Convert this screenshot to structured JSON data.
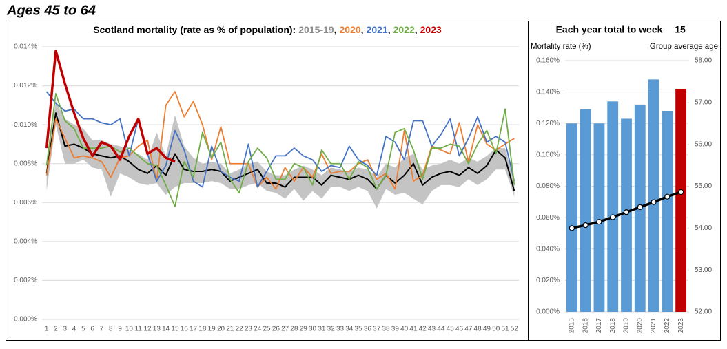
{
  "page_title": "Ages 45 to 64",
  "chart_data": [
    {
      "type": "line",
      "title": "Scotland mortality (rate as % of population):",
      "legend_separator": ",",
      "categories": [
        1,
        2,
        3,
        4,
        5,
        6,
        7,
        8,
        9,
        10,
        11,
        12,
        13,
        14,
        15,
        16,
        17,
        18,
        19,
        20,
        21,
        22,
        23,
        24,
        25,
        26,
        27,
        28,
        29,
        30,
        31,
        32,
        33,
        34,
        35,
        36,
        37,
        38,
        39,
        40,
        41,
        42,
        43,
        44,
        45,
        46,
        47,
        48,
        49,
        50,
        51,
        52
      ],
      "ylim": [
        0,
        0.014
      ],
      "yticks": [
        {
          "value": 0,
          "label": "0.000%"
        },
        {
          "value": 0.002,
          "label": "0.002%"
        },
        {
          "value": 0.004,
          "label": "0.004%"
        },
        {
          "value": 0.006,
          "label": "0.006%"
        },
        {
          "value": 0.008,
          "label": "0.008%"
        },
        {
          "value": 0.01,
          "label": "0.010%"
        },
        {
          "value": 0.012,
          "label": "0.012%"
        },
        {
          "value": 0.014,
          "label": "0.014%"
        }
      ],
      "grid": true,
      "series": [
        {
          "name": "2015-19",
          "color": "#8c8c8c",
          "line_color": "#000000",
          "band_color": "#c4c4c4",
          "values": [
            0.0075,
            0.0106,
            0.0089,
            0.009,
            0.0088,
            0.0085,
            0.0084,
            0.0083,
            0.0084,
            0.0081,
            0.0077,
            0.0075,
            0.0079,
            0.0074,
            0.0085,
            0.0077,
            0.0076,
            0.0076,
            0.0077,
            0.0076,
            0.0071,
            0.0073,
            0.0075,
            0.0077,
            0.007,
            0.007,
            0.0068,
            0.0073,
            0.0073,
            0.0073,
            0.0069,
            0.0074,
            0.0073,
            0.0072,
            0.0074,
            0.0072,
            0.0067,
            0.0074,
            0.007,
            0.0074,
            0.008,
            0.0069,
            0.0073,
            0.0075,
            0.0076,
            0.0074,
            0.0078,
            0.0075,
            0.0079,
            0.0087,
            0.0083,
            0.0066
          ],
          "high": [
            0.0078,
            0.0112,
            0.0103,
            0.01,
            0.0098,
            0.0092,
            0.0092,
            0.009,
            0.0089,
            0.0087,
            0.0085,
            0.0082,
            0.0096,
            0.0084,
            0.0105,
            0.0089,
            0.0083,
            0.008,
            0.0081,
            0.008,
            0.0075,
            0.0077,
            0.008,
            0.0081,
            0.0076,
            0.0074,
            0.0074,
            0.0077,
            0.0079,
            0.0077,
            0.0074,
            0.0078,
            0.0077,
            0.0076,
            0.0078,
            0.0077,
            0.0073,
            0.008,
            0.0078,
            0.0083,
            0.0085,
            0.0077,
            0.0079,
            0.008,
            0.0082,
            0.008,
            0.0083,
            0.0081,
            0.0084,
            0.0088,
            0.0088,
            0.0071
          ],
          "low": [
            0.0066,
            0.01,
            0.008,
            0.008,
            0.0082,
            0.0078,
            0.0077,
            0.0063,
            0.0075,
            0.0073,
            0.007,
            0.0069,
            0.007,
            0.0064,
            0.0068,
            0.007,
            0.007,
            0.007,
            0.0071,
            0.007,
            0.0067,
            0.0067,
            0.0069,
            0.007,
            0.0066,
            0.0065,
            0.0062,
            0.0067,
            0.0061,
            0.0066,
            0.0062,
            0.0068,
            0.0068,
            0.0066,
            0.0068,
            0.0066,
            0.0057,
            0.0067,
            0.0064,
            0.0065,
            0.0062,
            0.0059,
            0.0066,
            0.0069,
            0.0069,
            0.0068,
            0.0072,
            0.0069,
            0.0072,
            0.0077,
            0.0077,
            0.0063
          ]
        },
        {
          "name": "2020",
          "color": "#ed7d31",
          "values": [
            0.0074,
            0.0103,
            0.0093,
            0.0083,
            0.0084,
            0.0083,
            0.0081,
            0.0073,
            0.0083,
            0.0084,
            0.0089,
            0.0092,
            0.0071,
            0.011,
            0.0117,
            0.0104,
            0.0112,
            0.01,
            0.0082,
            0.0099,
            0.008,
            0.008,
            0.008,
            0.0068,
            0.0073,
            0.0067,
            0.0078,
            0.0071,
            0.0078,
            0.0073,
            0.0085,
            0.0075,
            0.0076,
            0.0076,
            0.008,
            0.0082,
            0.0072,
            0.0075,
            0.0067,
            0.0097,
            0.0071,
            0.0074,
            0.0089,
            0.0087,
            0.0085,
            0.0101,
            0.0081,
            0.01,
            0.009,
            0.0087,
            0.009,
            0.0093
          ]
        },
        {
          "name": "2021",
          "color": "#4472c4",
          "values": [
            0.0117,
            0.0111,
            0.0107,
            0.0108,
            0.0103,
            0.0103,
            0.0101,
            0.01,
            0.0103,
            0.0084,
            0.0103,
            0.0085,
            0.0071,
            0.0079,
            0.0097,
            0.0087,
            0.0071,
            0.0068,
            0.0089,
            0.0076,
            0.0073,
            0.0071,
            0.009,
            0.0068,
            0.0076,
            0.0084,
            0.0084,
            0.0088,
            0.0084,
            0.0082,
            0.0076,
            0.0079,
            0.0078,
            0.0089,
            0.0082,
            0.0079,
            0.0074,
            0.0094,
            0.0091,
            0.0082,
            0.0102,
            0.0102,
            0.0089,
            0.0095,
            0.0103,
            0.0084,
            0.0093,
            0.0104,
            0.0091,
            0.0094,
            0.0091,
            0.0071
          ]
        },
        {
          "name": "2022",
          "color": "#70ad47",
          "values": [
            0.0079,
            0.0116,
            0.0102,
            0.0098,
            0.0088,
            0.0088,
            0.0088,
            0.0089,
            0.0086,
            0.0088,
            0.0084,
            0.008,
            0.0079,
            0.0069,
            0.0058,
            0.0081,
            0.0073,
            0.0096,
            0.0083,
            0.0091,
            0.0072,
            0.0065,
            0.0081,
            0.0088,
            0.0083,
            0.0072,
            0.0072,
            0.008,
            0.0078,
            0.0069,
            0.0087,
            0.008,
            0.008,
            0.0072,
            0.0081,
            0.0078,
            0.0067,
            0.0074,
            0.0096,
            0.0098,
            0.0087,
            0.0072,
            0.0088,
            0.0088,
            0.009,
            0.0089,
            0.008,
            0.009,
            0.0097,
            0.0085,
            0.0108,
            0.0069
          ]
        },
        {
          "name": "2023",
          "color": "#c00000",
          "values": [
            0.0088,
            0.0138,
            0.0121,
            0.0106,
            0.0093,
            0.0084,
            0.0091,
            0.0089,
            0.0082,
            0.0094,
            0.0103,
            0.0085,
            0.0088,
            0.0083,
            0.0081,
            null,
            null,
            null,
            null,
            null,
            null,
            null,
            null,
            null,
            null,
            null,
            null,
            null,
            null,
            null,
            null,
            null,
            null,
            null,
            null,
            null,
            null,
            null,
            null,
            null,
            null,
            null,
            null,
            null,
            null,
            null,
            null,
            null,
            null,
            null,
            null,
            null
          ]
        }
      ]
    },
    {
      "type": "bar",
      "title": "Each year total to week",
      "title_week": 15,
      "ylabel": "Mortality rate (%)",
      "y2label": "Group average age",
      "categories": [
        "2015",
        "2016",
        "2017",
        "2018",
        "2019",
        "2020",
        "2021",
        "2022",
        "2023"
      ],
      "ylim": [
        0,
        0.16
      ],
      "yticks": [
        {
          "value": 0,
          "label": "0.000%"
        },
        {
          "value": 0.02,
          "label": "0.020%"
        },
        {
          "value": 0.04,
          "label": "0.040%"
        },
        {
          "value": 0.06,
          "label": "0.060%"
        },
        {
          "value": 0.08,
          "label": "0.080%"
        },
        {
          "value": 0.1,
          "label": "0.100%"
        },
        {
          "value": 0.12,
          "label": "0.120%"
        },
        {
          "value": 0.14,
          "label": "0.140%"
        },
        {
          "value": 0.16,
          "label": "0.160%"
        }
      ],
      "y2lim": [
        52,
        58
      ],
      "y2ticks": [
        {
          "value": 52,
          "label": "52.00"
        },
        {
          "value": 53,
          "label": "53.00"
        },
        {
          "value": 54,
          "label": "54.00"
        },
        {
          "value": 55,
          "label": "55.00"
        },
        {
          "value": 56,
          "label": "56.00"
        },
        {
          "value": 57,
          "label": "57.00"
        },
        {
          "value": 58,
          "label": "58.00"
        }
      ],
      "grid": true,
      "series": [
        {
          "colors": [
            "#5b9bd5",
            "#5b9bd5",
            "#5b9bd5",
            "#5b9bd5",
            "#5b9bd5",
            "#5b9bd5",
            "#5b9bd5",
            "#5b9bd5",
            "#c00000"
          ],
          "values": [
            0.12,
            0.129,
            0.12,
            0.134,
            0.123,
            0.132,
            0.148,
            0.128,
            0.142
          ]
        },
        {
          "type": "line",
          "axis": "y2",
          "color": "#000000",
          "values": [
            54.0,
            54.07,
            54.15,
            54.26,
            54.38,
            54.5,
            54.62,
            54.75,
            54.86
          ]
        }
      ]
    }
  ]
}
